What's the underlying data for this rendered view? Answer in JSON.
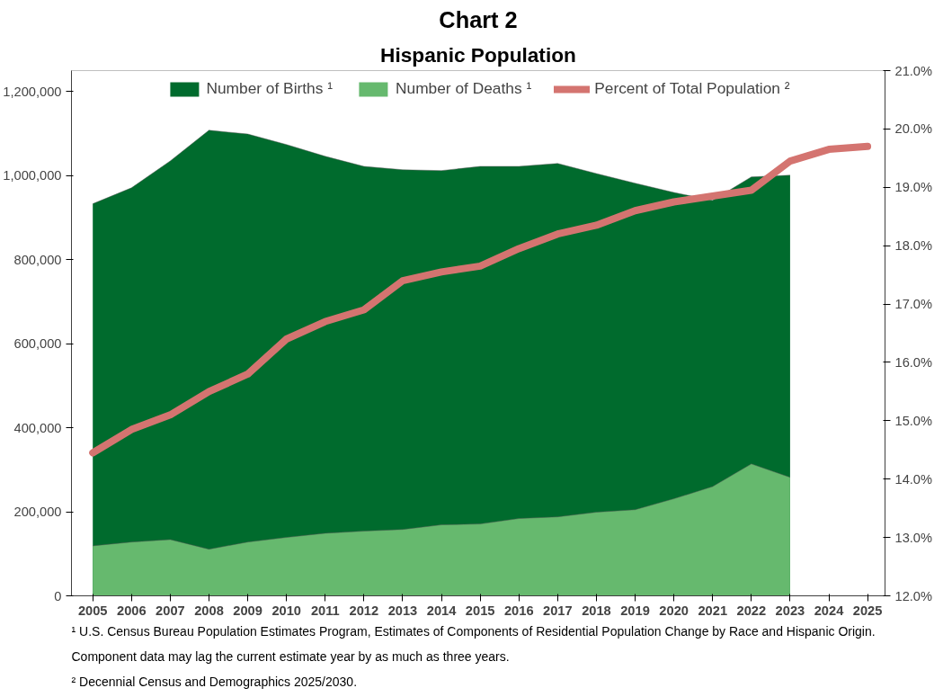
{
  "chart_data": {
    "type": "area",
    "title": "Chart 2",
    "subtitle": "Hispanic Population",
    "categories": [
      "2005",
      "2006",
      "2007",
      "2008",
      "2009",
      "2010",
      "2011",
      "2012",
      "2013",
      "2014",
      "2015",
      "2016",
      "2017",
      "2018",
      "2019",
      "2020",
      "2021",
      "2022",
      "2023",
      "2024",
      "2025"
    ],
    "series": [
      {
        "name": "Number of Births ¹",
        "color": "#006b2d",
        "values": [
          933000,
          971000,
          1035000,
          1108000,
          1099000,
          1074000,
          1046000,
          1022000,
          1014000,
          1012000,
          1022000,
          1022000,
          1029000,
          1005000,
          982000,
          960000,
          941000,
          997000,
          1001000,
          null,
          null
        ]
      },
      {
        "name": "Number of Deaths ¹",
        "color": "#66b96e",
        "values": [
          119000,
          128000,
          134000,
          111000,
          128000,
          139000,
          149000,
          154000,
          158000,
          169000,
          171000,
          184000,
          188000,
          199000,
          205000,
          231000,
          260000,
          314000,
          282000,
          null,
          null
        ]
      },
      {
        "name": "Percent of Total Population ²",
        "type": "line",
        "axis": "y2",
        "color": "#d47470",
        "values": [
          14.45,
          14.85,
          15.1,
          15.5,
          15.8,
          16.4,
          16.7,
          16.9,
          17.4,
          17.55,
          17.65,
          17.95,
          18.2,
          18.35,
          18.6,
          18.75,
          18.85,
          18.95,
          19.45,
          19.65,
          19.7
        ]
      }
    ],
    "ylim": [
      0,
      1250000
    ],
    "yticks": [
      0,
      {
        "value": 200000,
        "label": "200,000"
      },
      {
        "value": 400000,
        "label": "400,000"
      },
      {
        "value": 600000,
        "label": "600,000"
      },
      {
        "value": 800000,
        "label": "800,000"
      },
      {
        "value": 1000000,
        "label": "1,000,000"
      },
      {
        "value": 1200000,
        "label": "1,200,000"
      }
    ],
    "y2lim": [
      12,
      21
    ],
    "y2ticks": [
      {
        "value": 12,
        "label": "12.0%"
      },
      {
        "value": 13,
        "label": "13.0%"
      },
      {
        "value": 14,
        "label": "14.0%"
      },
      {
        "value": 15,
        "label": "15.0%"
      },
      {
        "value": 16,
        "label": "16.0%"
      },
      {
        "value": 17,
        "label": "17.0%"
      },
      {
        "value": 18,
        "label": "18.0%"
      },
      {
        "value": 19,
        "label": "19.0%"
      },
      {
        "value": 20,
        "label": "20.0%"
      },
      {
        "value": 21,
        "label": "21.0%"
      }
    ],
    "grid": false,
    "legend": "top",
    "annotations": [
      "¹ U.S. Census Bureau Population Estimates Program, Estimates of Components of Residential Population Change by Race and Hispanic Origin.",
      "Component data may lag the current estimate year by as much as three years.",
      "² Decennial Census and Demographics 2025/2030."
    ]
  }
}
